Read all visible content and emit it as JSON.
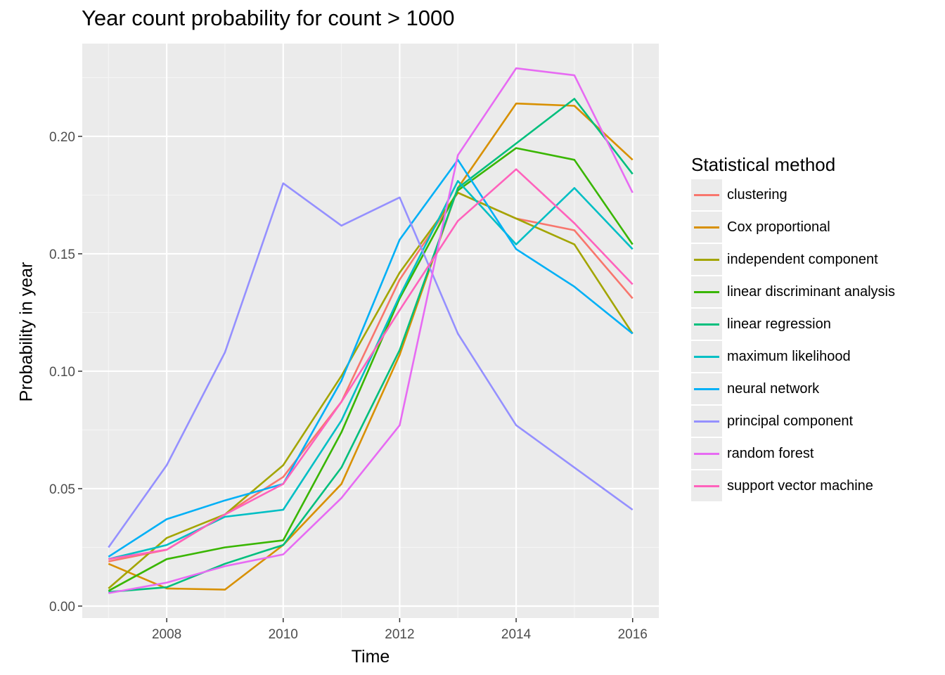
{
  "chart_data": {
    "type": "line",
    "title": "Year count probability for count > 1000",
    "xlabel": "Time",
    "ylabel": "Probability in year",
    "legend_title": "Statistical method",
    "legend_position": "right",
    "grid": true,
    "xlim": [
      2006.55,
      2016.45
    ],
    "ylim": [
      -0.0051,
      0.2395
    ],
    "x_ticks": [
      2008,
      2010,
      2012,
      2014,
      2016
    ],
    "y_ticks": [
      0.0,
      0.05,
      0.1,
      0.15,
      0.2
    ],
    "y_tick_labels": [
      "0.00",
      "0.05",
      "0.10",
      "0.15",
      "0.20"
    ],
    "x": [
      2007,
      2008,
      2009,
      2010,
      2011,
      2012,
      2013,
      2014,
      2015,
      2016
    ],
    "series": [
      {
        "name": "clustering",
        "color": "#F8766D",
        "values": [
          0.019,
          0.024,
          0.039,
          0.055,
          0.087,
          0.139,
          0.176,
          0.165,
          0.16,
          0.131
        ]
      },
      {
        "name": "Cox proportional",
        "color": "#D89000",
        "values": [
          0.018,
          0.0075,
          0.007,
          0.026,
          0.052,
          0.107,
          0.178,
          0.214,
          0.213,
          0.19
        ]
      },
      {
        "name": "independent component",
        "color": "#A3A500",
        "values": [
          0.0075,
          0.029,
          0.039,
          0.06,
          0.098,
          0.142,
          0.176,
          0.165,
          0.154,
          0.116
        ]
      },
      {
        "name": "linear discriminant analysis",
        "color": "#39B600",
        "values": [
          0.0065,
          0.02,
          0.025,
          0.028,
          0.074,
          0.131,
          0.177,
          0.195,
          0.19,
          0.154
        ]
      },
      {
        "name": "linear regression",
        "color": "#00BF7D",
        "values": [
          0.006,
          0.008,
          0.018,
          0.026,
          0.059,
          0.109,
          0.178,
          0.197,
          0.216,
          0.184
        ]
      },
      {
        "name": "maximum likelihood",
        "color": "#00BFC4",
        "values": [
          0.02,
          0.026,
          0.038,
          0.041,
          0.079,
          0.132,
          0.181,
          0.154,
          0.178,
          0.152
        ]
      },
      {
        "name": "neural network",
        "color": "#00B0F6",
        "values": [
          0.021,
          0.037,
          0.045,
          0.052,
          0.096,
          0.156,
          0.19,
          0.152,
          0.136,
          0.116
        ]
      },
      {
        "name": "principal component",
        "color": "#9590FF",
        "values": [
          0.025,
          0.06,
          0.108,
          0.18,
          0.162,
          0.174,
          0.116,
          0.077,
          0.059,
          0.041
        ]
      },
      {
        "name": "random forest",
        "color": "#E76BF3",
        "values": [
          0.0055,
          0.01,
          0.017,
          0.022,
          0.046,
          0.077,
          0.192,
          0.229,
          0.226,
          0.176
        ]
      },
      {
        "name": "support vector machine",
        "color": "#FF62BC",
        "values": [
          0.02,
          0.024,
          0.039,
          0.052,
          0.087,
          0.126,
          0.164,
          0.186,
          0.163,
          0.137
        ]
      }
    ]
  }
}
